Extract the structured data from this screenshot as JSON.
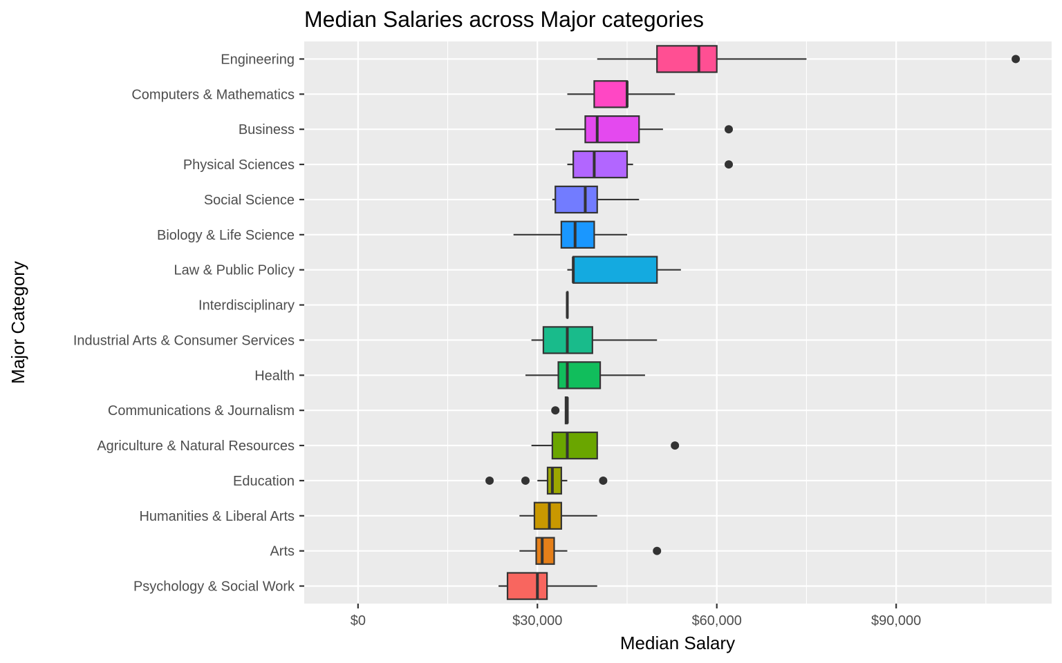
{
  "chart_data": {
    "type": "boxplot",
    "orientation": "horizontal",
    "title": "Median Salaries across Major categories",
    "xlabel": "Median Salary",
    "ylabel": "Major Category",
    "xlim": [
      -9000,
      116000
    ],
    "xticks": [
      0,
      30000,
      60000,
      90000
    ],
    "xtick_labels": [
      "$0",
      "$30,000",
      "$60,000",
      "$90,000"
    ],
    "grid": true,
    "legend": "none",
    "categories": [
      {
        "name": "Engineering",
        "color": "#FF4F93",
        "whisker_low": 40000,
        "q1": 50000,
        "median": 57000,
        "q3": 60000,
        "whisker_high": 75000,
        "outliers": [
          110000
        ]
      },
      {
        "name": "Computers & Mathematics",
        "color": "#FF47C4",
        "whisker_low": 35000,
        "q1": 39500,
        "median": 45000,
        "q3": 45000,
        "whisker_high": 53000,
        "outliers": []
      },
      {
        "name": "Business",
        "color": "#E449EF",
        "whisker_low": 33000,
        "q1": 38000,
        "median": 40000,
        "q3": 47000,
        "whisker_high": 51000,
        "outliers": [
          62000
        ]
      },
      {
        "name": "Physical Sciences",
        "color": "#B266FF",
        "whisker_low": 35000,
        "q1": 36000,
        "median": 39500,
        "q3": 45000,
        "whisker_high": 46000,
        "outliers": [
          62000
        ]
      },
      {
        "name": "Social Science",
        "color": "#727CFF",
        "whisker_low": 32500,
        "q1": 33000,
        "median": 38000,
        "q3": 40000,
        "whisker_high": 47000,
        "outliers": []
      },
      {
        "name": "Biology & Life Science",
        "color": "#1A97FF",
        "whisker_low": 26000,
        "q1": 34000,
        "median": 36300,
        "q3": 39500,
        "whisker_high": 45000,
        "outliers": []
      },
      {
        "name": "Law & Public Policy",
        "color": "#14AAE0",
        "whisker_low": 35000,
        "q1": 36000,
        "median": 36000,
        "q3": 50000,
        "whisker_high": 54000,
        "outliers": []
      },
      {
        "name": "Interdisciplinary",
        "color": "#00B9BF",
        "whisker_low": 35000,
        "q1": 35000,
        "median": 35000,
        "q3": 35000,
        "whisker_high": 35000,
        "outliers": []
      },
      {
        "name": "Industrial Arts & Consumer Services",
        "color": "#19BB8B",
        "whisker_low": 29000,
        "q1": 31000,
        "median": 35000,
        "q3": 39200,
        "whisker_high": 50000,
        "outliers": []
      },
      {
        "name": "Health",
        "color": "#11BE5C",
        "whisker_low": 28000,
        "q1": 33500,
        "median": 35000,
        "q3": 40500,
        "whisker_high": 48000,
        "outliers": []
      },
      {
        "name": "Communications & Journalism",
        "color": "#3DB800",
        "whisker_low": 34700,
        "q1": 34700,
        "median": 35000,
        "q3": 35000,
        "whisker_high": 35000,
        "outliers": [
          33000
        ]
      },
      {
        "name": "Agriculture & Natural Resources",
        "color": "#6AA600",
        "whisker_low": 29000,
        "q1": 32500,
        "median": 35000,
        "q3": 40000,
        "whisker_high": 40000,
        "outliers": [
          53000
        ]
      },
      {
        "name": "Education",
        "color": "#9CA700",
        "whisker_low": 30000,
        "q1": 31700,
        "median": 32500,
        "q3": 34000,
        "whisker_high": 35000,
        "outliers": [
          22000,
          28000,
          41000
        ]
      },
      {
        "name": "Humanities & Liberal Arts",
        "color": "#C99800",
        "whisker_low": 27000,
        "q1": 29500,
        "median": 32000,
        "q3": 34000,
        "whisker_high": 40000,
        "outliers": []
      },
      {
        "name": "Arts",
        "color": "#E57F19",
        "whisker_low": 27000,
        "q1": 29800,
        "median": 30800,
        "q3": 32800,
        "whisker_high": 35000,
        "outliers": [
          50000
        ]
      },
      {
        "name": "Psychology & Social Work",
        "color": "#F8665F",
        "whisker_low": 23500,
        "q1": 25000,
        "median": 30000,
        "q3": 31600,
        "whisker_high": 40000,
        "outliers": []
      }
    ]
  }
}
